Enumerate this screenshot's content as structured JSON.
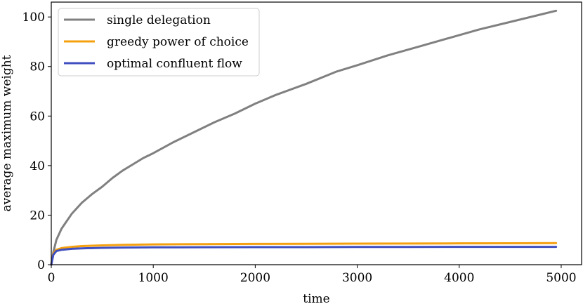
{
  "chart_data": {
    "type": "line",
    "title": "",
    "xlabel": "time",
    "ylabel": "average maximum weight",
    "xlim": [
      0,
      5200
    ],
    "ylim": [
      0,
      106
    ],
    "xticks": [
      0,
      1000,
      2000,
      3000,
      4000,
      5000
    ],
    "yticks": [
      0,
      20,
      40,
      60,
      80,
      100
    ],
    "grid": false,
    "legend": "top-left",
    "series": [
      {
        "name": "single delegation",
        "color": "#808080",
        "x": [
          0,
          20,
          50,
          100,
          150,
          200,
          300,
          400,
          500,
          600,
          700,
          800,
          900,
          1000,
          1200,
          1400,
          1600,
          1800,
          2000,
          2200,
          2500,
          2800,
          3000,
          3300,
          3600,
          3900,
          4200,
          4500,
          4800,
          4950
        ],
        "y": [
          0,
          5,
          10,
          14.5,
          17.5,
          20.5,
          25,
          28.5,
          31.5,
          35,
          38,
          40.5,
          43,
          45,
          49.5,
          53.5,
          57.5,
          61,
          65,
          68.5,
          73,
          78,
          80.5,
          84.5,
          88,
          91.5,
          95,
          98,
          101,
          102.5
        ]
      },
      {
        "name": "greedy power of choice",
        "color": "#f5a00f",
        "x": [
          0,
          20,
          50,
          100,
          200,
          300,
          500,
          700,
          1000,
          1500,
          2000,
          2500,
          3000,
          3500,
          4000,
          4500,
          4950
        ],
        "y": [
          0,
          4.5,
          6,
          6.7,
          7.2,
          7.5,
          7.8,
          8.0,
          8.2,
          8.3,
          8.4,
          8.45,
          8.5,
          8.55,
          8.6,
          8.65,
          8.7
        ]
      },
      {
        "name": "optimal confluent flow",
        "color": "#3f4fbf",
        "x": [
          0,
          20,
          50,
          100,
          200,
          300,
          500,
          700,
          1000,
          1500,
          2000,
          2500,
          3000,
          3500,
          4000,
          4500,
          4950
        ],
        "y": [
          0,
          4,
          5.5,
          6.0,
          6.4,
          6.6,
          6.8,
          6.9,
          7.0,
          7.05,
          7.1,
          7.1,
          7.15,
          7.15,
          7.2,
          7.2,
          7.2
        ]
      }
    ]
  }
}
